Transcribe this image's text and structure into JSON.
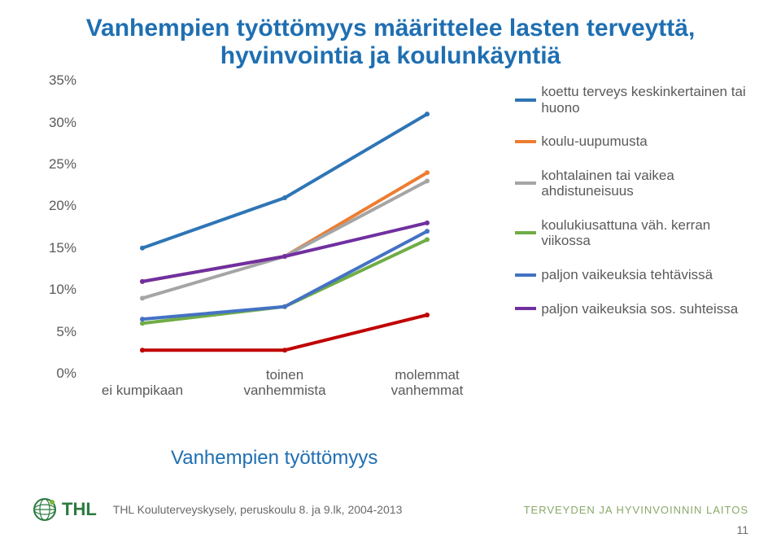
{
  "title": "Vanhempien työttömyys määrittelee lasten terveyttä, hyvinvointia ja koulunkäyntiä",
  "subtitle": "Vanhempien työttömyys",
  "source": "THL Kouluterveyskysely, peruskoulu 8. ja 9.lk, 2004-2013",
  "org": "TERVEYDEN JA HYVINVOINNIN LAITOS",
  "page": "11",
  "logo_text": "THL",
  "logo_color": "#2b7a3f",
  "chart": {
    "type": "line",
    "categories": [
      "ei kumpikaan",
      "toinen\nvanhemmista",
      "molemmat\nvanhemmat"
    ],
    "ylabel_suffix": "%",
    "ylim": [
      0,
      35
    ],
    "ytick_step": 5,
    "label_color": "#5a5a5a",
    "label_fontsize": 17,
    "background": "#ffffff",
    "line_width": 4,
    "marker_size": 6,
    "series": [
      {
        "name": "koettu terveys keskinkertainen tai huono",
        "color": "#2e75b6",
        "values": [
          15,
          21,
          31
        ]
      },
      {
        "name": "koulu-uupumusta",
        "color": "#ed7d31",
        "values": [
          11,
          14,
          24
        ]
      },
      {
        "name": "kohtalainen tai vaikea ahdistuneisuus",
        "color": "#a5a5a5",
        "values": [
          9,
          14,
          23
        ]
      },
      {
        "name": "koulukiusattuna väh. kerran viikossa",
        "color": "#70ad47",
        "values": [
          6,
          8,
          16
        ]
      },
      {
        "name": "paljon vaikeuksia tehtävissä",
        "color": "#4472c4",
        "values": [
          6.5,
          8,
          17
        ]
      },
      {
        "name": "paljon vaikeuksia sos. suhteissa",
        "color": "#7030a0",
        "values": [
          11,
          14,
          18
        ]
      },
      {
        "name": "_red",
        "color": "#c00000",
        "values": [
          2.8,
          2.8,
          7
        ],
        "hide_legend": true
      }
    ]
  },
  "colors": {
    "title": "#1f6fb2",
    "subtitle": "#1f6fb2",
    "text": "#5a5a5a",
    "org": "#8aa869"
  }
}
